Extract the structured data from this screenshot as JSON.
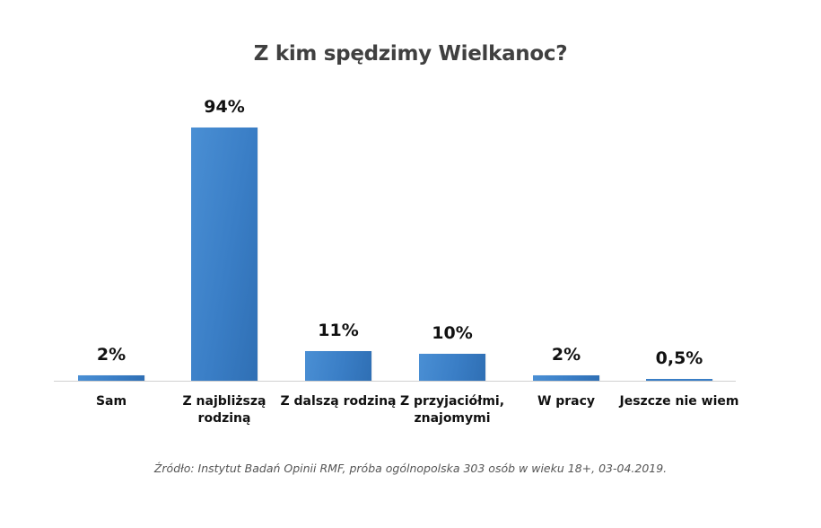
{
  "chart_data": {
    "type": "bar",
    "title": "Z kim spędzimy Wielkanoc?",
    "categories": [
      "Sam",
      "Z najbliższą rodziną",
      "Z dalszą rodziną",
      "Z przyjaciółmi, znajomymi",
      "W pracy",
      "Jeszcze nie wiem"
    ],
    "category_lines": [
      [
        "Sam"
      ],
      [
        "Z najbliższą",
        "rodziną"
      ],
      [
        "Z dalszą rodziną"
      ],
      [
        "Z przyjaciółmi,",
        "znajomymi"
      ],
      [
        "W pracy"
      ],
      [
        "Jeszcze nie wiem"
      ]
    ],
    "values": [
      2,
      94,
      11,
      10,
      2,
      0.5
    ],
    "value_labels": [
      "2%",
      "94%",
      "11%",
      "10%",
      "2%",
      "0,5%"
    ],
    "xlabel": "",
    "ylabel": "",
    "ylim": [
      0,
      100
    ],
    "grid": false,
    "legend": null,
    "bar_color": "#3a7ec6",
    "source": "Źródło: Instytut Badań Opinii RMF, próba ogólnopolska 303 osób w wieku 18+, 03-04.2019."
  }
}
